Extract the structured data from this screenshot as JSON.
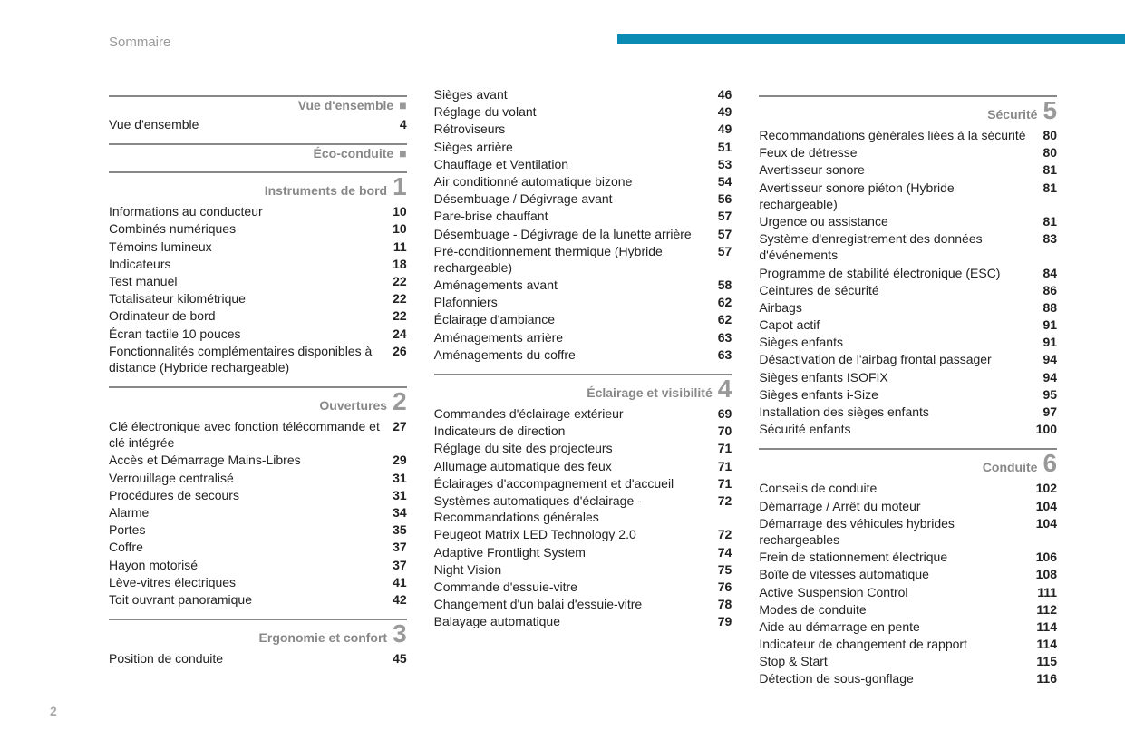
{
  "page_title": "Sommaire",
  "page_number": "2",
  "columns": [
    {
      "sections": [
        {
          "title": "Vue d'ensemble",
          "number": null,
          "marker": "■",
          "entries": [
            {
              "text": "Vue d'ensemble",
              "page": "4"
            }
          ]
        },
        {
          "title": "Éco-conduite",
          "number": null,
          "marker": "■",
          "entries": []
        },
        {
          "title": "Instruments de bord",
          "number": "1",
          "marker": null,
          "entries": [
            {
              "text": "Informations au conducteur",
              "page": "10"
            },
            {
              "text": "Combinés numériques",
              "page": "10"
            },
            {
              "text": "Témoins lumineux",
              "page": "11"
            },
            {
              "text": "Indicateurs",
              "page": "18"
            },
            {
              "text": "Test manuel",
              "page": "22"
            },
            {
              "text": "Totalisateur kilométrique",
              "page": "22"
            },
            {
              "text": "Ordinateur de bord",
              "page": "22"
            },
            {
              "text": "Écran tactile 10 pouces",
              "page": "24"
            },
            {
              "text": "Fonctionnalités complémentaires disponibles à distance (Hybride rechargeable)",
              "page": "26"
            }
          ]
        },
        {
          "title": "Ouvertures",
          "number": "2",
          "marker": null,
          "entries": [
            {
              "text": "Clé électronique avec fonction télécommande et clé intégrée",
              "page": "27"
            },
            {
              "text": "Accès et Démarrage Mains-Libres",
              "page": "29"
            },
            {
              "text": "Verrouillage centralisé",
              "page": "31"
            },
            {
              "text": "Procédures de secours",
              "page": "31"
            },
            {
              "text": "Alarme",
              "page": "34"
            },
            {
              "text": "Portes",
              "page": "35"
            },
            {
              "text": "Coffre",
              "page": "37"
            },
            {
              "text": "Hayon motorisé",
              "page": "37"
            },
            {
              "text": "Lève-vitres électriques",
              "page": "41"
            },
            {
              "text": "Toit ouvrant panoramique",
              "page": "42"
            }
          ]
        },
        {
          "title": "Ergonomie et confort",
          "number": "3",
          "marker": null,
          "entries": [
            {
              "text": "Position de conduite",
              "page": "45"
            }
          ]
        }
      ]
    },
    {
      "sections": [
        {
          "title": null,
          "number": null,
          "marker": null,
          "no_header": true,
          "entries": [
            {
              "text": "Sièges avant",
              "page": "46"
            },
            {
              "text": "Réglage du volant",
              "page": "49"
            },
            {
              "text": "Rétroviseurs",
              "page": "49"
            },
            {
              "text": "Sièges arrière",
              "page": "51"
            },
            {
              "text": "Chauffage et Ventilation",
              "page": "53"
            },
            {
              "text": "Air conditionné automatique bizone",
              "page": "54"
            },
            {
              "text": "Désembuage / Dégivrage avant",
              "page": "56"
            },
            {
              "text": "Pare-brise chauffant",
              "page": "57"
            },
            {
              "text": "Désembuage - Dégivrage de la lunette arrière",
              "page": "57"
            },
            {
              "text": "Pré-conditionnement thermique (Hybride rechargeable)",
              "page": "57"
            },
            {
              "text": "Aménagements avant",
              "page": "58"
            },
            {
              "text": "Plafonniers",
              "page": "62"
            },
            {
              "text": "Éclairage d'ambiance",
              "page": "62"
            },
            {
              "text": "Aménagements arrière",
              "page": "63"
            },
            {
              "text": "Aménagements du coffre",
              "page": "63"
            }
          ]
        },
        {
          "title": "Éclairage et visibilité",
          "number": "4",
          "marker": null,
          "entries": [
            {
              "text": "Commandes d'éclairage extérieur",
              "page": "69"
            },
            {
              "text": "Indicateurs de direction",
              "page": "70"
            },
            {
              "text": "Réglage du site des projecteurs",
              "page": "71"
            },
            {
              "text": "Allumage automatique des feux",
              "page": "71"
            },
            {
              "text": "Éclairages d'accompagnement et d'accueil",
              "page": "71"
            },
            {
              "text": "Systèmes automatiques d'éclairage - Recommandations générales",
              "page": "72"
            },
            {
              "text": "Peugeot Matrix LED Technology 2.0",
              "page": "72"
            },
            {
              "text": "Adaptive Frontlight System",
              "page": "74"
            },
            {
              "text": "Night Vision",
              "page": "75"
            },
            {
              "text": "Commande d'essuie-vitre",
              "page": "76"
            },
            {
              "text": "Changement d'un balai d'essuie-vitre",
              "page": "78"
            },
            {
              "text": "Balayage automatique",
              "page": "79"
            }
          ]
        }
      ]
    },
    {
      "sections": [
        {
          "title": "Sécurité",
          "number": "5",
          "marker": null,
          "entries": [
            {
              "text": "Recommandations générales liées à la sécurité",
              "page": "80"
            },
            {
              "text": "Feux de détresse",
              "page": "80"
            },
            {
              "text": "Avertisseur sonore",
              "page": "81"
            },
            {
              "text": "Avertisseur sonore piéton (Hybride rechargeable)",
              "page": "81"
            },
            {
              "text": "Urgence ou assistance",
              "page": "81"
            },
            {
              "text": "Système d'enregistrement des données d'événements",
              "page": "83"
            },
            {
              "text": "Programme de stabilité électronique (ESC)",
              "page": "84"
            },
            {
              "text": "Ceintures de sécurité",
              "page": "86"
            },
            {
              "text": "Airbags",
              "page": "88"
            },
            {
              "text": "Capot actif",
              "page": "91"
            },
            {
              "text": "Sièges enfants",
              "page": "91"
            },
            {
              "text": "Désactivation de l'airbag frontal passager",
              "page": "94"
            },
            {
              "text": "Sièges enfants ISOFIX",
              "page": "94"
            },
            {
              "text": "Sièges enfants i-Size",
              "page": "95"
            },
            {
              "text": "Installation des sièges enfants",
              "page": "97"
            },
            {
              "text": "Sécurité enfants",
              "page": "100"
            }
          ]
        },
        {
          "title": "Conduite",
          "number": "6",
          "marker": null,
          "entries": [
            {
              "text": "Conseils de conduite",
              "page": "102"
            },
            {
              "text": "Démarrage / Arrêt du moteur",
              "page": "104"
            },
            {
              "text": "Démarrage des véhicules hybrides rechargeables",
              "page": "104"
            },
            {
              "text": "Frein de stationnement électrique",
              "page": "106"
            },
            {
              "text": "Boîte de vitesses automatique",
              "page": "108"
            },
            {
              "text": "Active Suspension Control",
              "page": "111"
            },
            {
              "text": "Modes de conduite",
              "page": "112"
            },
            {
              "text": "Aide au démarrage en pente",
              "page": "114"
            },
            {
              "text": "Indicateur de changement de rapport",
              "page": "114"
            },
            {
              "text": "Stop & Start",
              "page": "115"
            },
            {
              "text": "Détection de sous-gonflage",
              "page": "116"
            }
          ]
        }
      ]
    }
  ]
}
